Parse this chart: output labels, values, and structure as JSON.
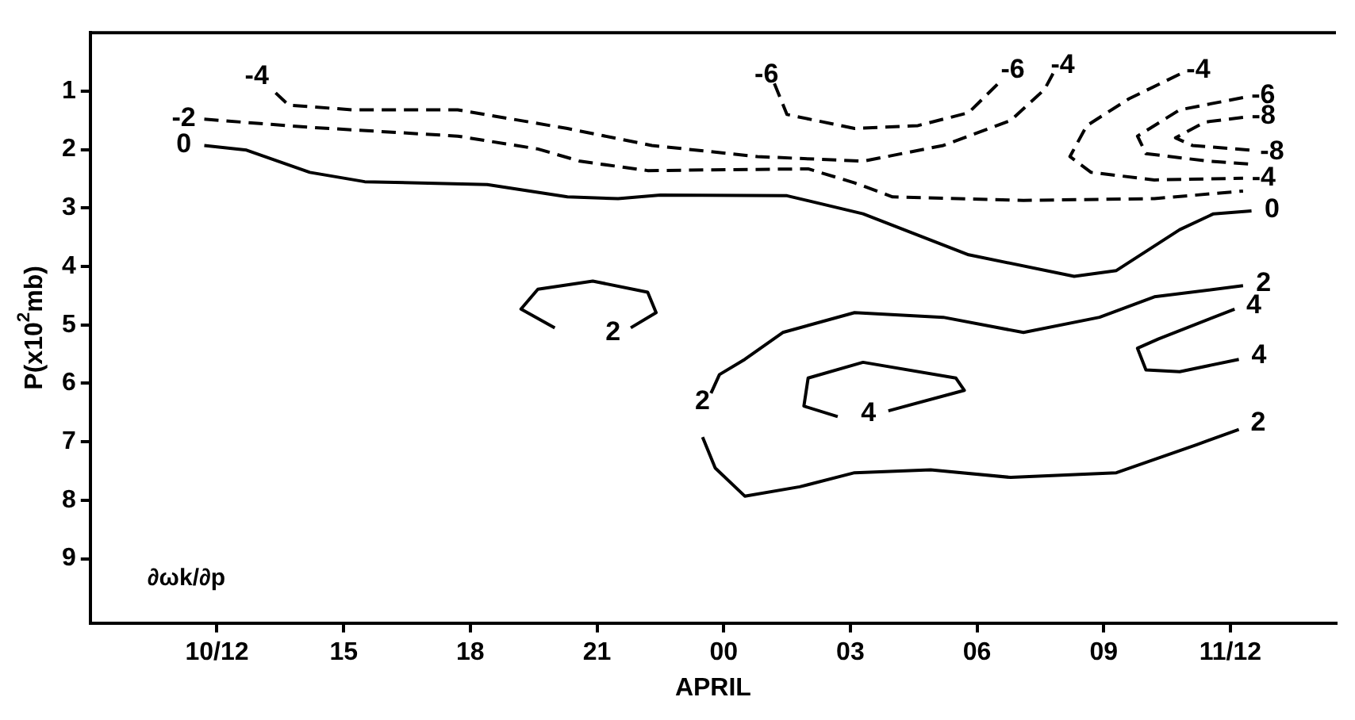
{
  "chart_data": {
    "type": "line",
    "xlabel": "APRIL",
    "ylabel": "P(x10$^{2}$mb)",
    "xlim": [
      "--04-10T09:00",
      "--04-11T14:30"
    ],
    "ylim": [
      10.1,
      0
    ],
    "xticks": [
      {
        "value": "--04-10T12:00",
        "label": "10/12"
      },
      {
        "value": "--04-10T15:00",
        "label": "15"
      },
      {
        "value": "--04-10T18:00",
        "label": "18"
      },
      {
        "value": "--04-10T21:00",
        "label": "21"
      },
      {
        "value": "--04-11T00:00",
        "label": "00"
      },
      {
        "value": "--04-11T03:00",
        "label": "03"
      },
      {
        "value": "--04-11T06:00",
        "label": "06"
      },
      {
        "value": "--04-11T09:00",
        "label": "09"
      },
      {
        "value": "--04-11T12:00",
        "label": "11/12"
      }
    ],
    "yticks": [
      1,
      2,
      3,
      4,
      5,
      6,
      7,
      8,
      9
    ],
    "grid": false,
    "legend": false,
    "marker": "none",
    "series": [
      {
        "name": "0",
        "color": "#000000",
        "line_style": "solid",
        "x": [
          "--04-10T11:42",
          "--04-10T12:42",
          "--04-10T14:12",
          "--04-10T15:30",
          "--04-10T18:24",
          "--04-10T20:18",
          "--04-10T21:30",
          "--04-10T22:30",
          "--04-11T01:30",
          "--04-11T03:18",
          "--04-11T05:48",
          "--04-11T08:18",
          "--04-11T09:18",
          "--04-11T10:48",
          "--04-11T11:36",
          "--04-11T12:30"
        ],
        "values": [
          1.93,
          2.01,
          2.39,
          2.55,
          2.6,
          2.81,
          2.84,
          2.78,
          2.79,
          3.1,
          3.8,
          4.17,
          4.07,
          3.37,
          3.1,
          3.05
        ]
      },
      {
        "name": "-2",
        "color": "#000000",
        "line_style": "dashed",
        "x": [
          "--04-10T11:42",
          "--04-10T14:00",
          "--04-10T17:42",
          "--04-10T19:36",
          "--04-10T20:36",
          "--04-10T22:12",
          "--04-11T02:00",
          "--04-11T03:06",
          "--04-11T04:00",
          "--04-11T07:06",
          "--04-11T10:12",
          "--04-11T12:18"
        ],
        "values": [
          1.48,
          1.61,
          1.77,
          1.99,
          2.2,
          2.36,
          2.33,
          2.57,
          2.81,
          2.87,
          2.84,
          2.71
        ]
      },
      {
        "name": "-4",
        "color": "#000000",
        "line_style": "dashed",
        "x": [
          "--04-11T07:48",
          "--04-11T07:36",
          "--04-11T06:48",
          "--04-11T05:12",
          "--04-11T03:18",
          "--04-11T00:48",
          "--04-10T22:18",
          "--04-10T20:18",
          "--04-10T17:42",
          "--04-10T15:12",
          "--04-10T13:42",
          "--04-10T13:18"
        ],
        "values": [
          0.7,
          0.97,
          1.5,
          1.93,
          2.2,
          2.12,
          1.93,
          1.64,
          1.32,
          1.32,
          1.24,
          0.97
        ]
      },
      {
        "name": "-6",
        "color": "#000000",
        "line_style": "dashed",
        "x": [
          "--04-11T01:12",
          "--04-11T01:30",
          "--04-11T03:06",
          "--04-11T04:36",
          "--04-11T05:48",
          "--04-11T06:30"
        ],
        "values": [
          0.87,
          1.4,
          1.64,
          1.59,
          1.37,
          0.87
        ]
      },
      {
        "name": "-4",
        "color": "#000000",
        "line_style": "dashed",
        "x": [
          "--04-11T10:48",
          "--04-11T09:36",
          "--04-11T08:36",
          "--04-11T08:12",
          "--04-11T08:42",
          "--04-11T10:12",
          "--04-11T12:18"
        ],
        "values": [
          0.71,
          1.13,
          1.59,
          2.12,
          2.39,
          2.52,
          2.49
        ]
      },
      {
        "name": "-6",
        "color": "#000000",
        "line_style": "dashed",
        "x": [
          "--04-11T12:18",
          "--04-11T10:48",
          "--04-11T09:48",
          "--04-11T10:00",
          "--04-11T11:30",
          "--04-11T12:30"
        ],
        "values": [
          1.11,
          1.32,
          1.77,
          2.07,
          2.2,
          2.25
        ]
      },
      {
        "name": "-8",
        "color": "#000000",
        "line_style": "dashed",
        "x": [
          "--04-11T12:18",
          "--04-11T11:24",
          "--04-11T10:42",
          "--04-11T11:06",
          "--04-11T12:30"
        ],
        "values": [
          1.45,
          1.53,
          1.8,
          1.93,
          2.01
        ]
      },
      {
        "name": "2",
        "color": "#000000",
        "line_style": "solid",
        "x": [
          "--04-10T21:48",
          "--04-10T22:24",
          "--04-10T22:12",
          "--04-10T20:54",
          "--04-10T19:36",
          "--04-10T19:12",
          "--04-10T20:00"
        ],
        "values": [
          5.05,
          4.79,
          4.44,
          4.25,
          4.39,
          4.73,
          5.05
        ]
      },
      {
        "name": "2",
        "color": "#000000",
        "line_style": "solid",
        "x": [
          "--04-10T23:42",
          "--04-10T23:54",
          "--04-11T00:30",
          "--04-11T01:24",
          "--04-11T03:06",
          "--04-11T05:12",
          "--04-11T07:06",
          "--04-11T08:54",
          "--04-11T10:12",
          "--04-11T12:18",
          "--04-10T23:36",
          "--04-10T23:30",
          "--04-10T23:48",
          "--04-11T00:30",
          "--04-11T01:48",
          "--04-11T03:06",
          "--04-11T04:54",
          "--04-11T06:48",
          "--04-11T09:18",
          "--04-11T11:12",
          "--04-11T12:12"
        ],
        "values": [
          6.17,
          5.85,
          5.59,
          5.13,
          4.79,
          4.87,
          5.13,
          4.87,
          4.52,
          4.33,
          null,
          6.92,
          7.45,
          7.93,
          7.77,
          7.53,
          7.48,
          7.61,
          7.53,
          7.05,
          6.79
        ]
      },
      {
        "name": "4",
        "color": "#000000",
        "line_style": "solid",
        "x": [
          "--04-11T03:54",
          "--04-11T05:42",
          "--04-11T05:30",
          "--04-11T03:18",
          "--04-11T02:00",
          "--04-11T01:54",
          "--04-11T02:42"
        ],
        "values": [
          6.47,
          6.12,
          5.91,
          5.64,
          5.91,
          6.39,
          6.57
        ]
      },
      {
        "name": "4",
        "color": "#000000",
        "line_style": "solid",
        "x": [
          "--04-11T12:06",
          "--04-11T10:18",
          "--04-11T09:48",
          "--04-11T10:00",
          "--04-11T10:48",
          "--04-11T12:12"
        ],
        "values": [
          4.73,
          5.24,
          5.4,
          5.77,
          5.8,
          5.59
        ]
      }
    ],
    "annotations": [
      {
        "text": "0",
        "x": "--04-11T12:30",
        "y": 3.05
      },
      {
        "text": "-4",
        "x": "--04-10T13:18",
        "y": 0.97
      },
      {
        "text": "-6",
        "x": "--04-11T06:30",
        "y": 0.87
      },
      {
        "text": "-4",
        "x": "--04-11T12:18",
        "y": 2.49
      },
      {
        "text": "-8",
        "x": "--04-11T12:30",
        "y": 2.01
      },
      {
        "text": "2",
        "x": "--04-11T12:18",
        "y": 4.33
      },
      {
        "text": "2",
        "x": "--04-11T12:12",
        "y": 6.79
      },
      {
        "text": "4",
        "x": "--04-11T12:12",
        "y": 5.59
      },
      "∂ωk/∂p"
    ]
  }
}
